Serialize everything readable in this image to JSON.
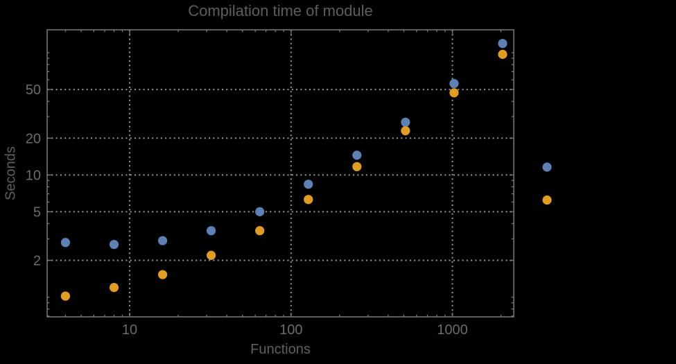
{
  "chart_data": {
    "type": "scatter",
    "title": "Compilation time of module",
    "xlabel": "Functions",
    "ylabel": "Seconds",
    "x_scale": "log",
    "y_scale": "log",
    "xlim": [
      3.08,
      2400
    ],
    "ylim": [
      0.69,
      154
    ],
    "grid_style": "dotted",
    "grid_x": [
      10,
      100,
      1000
    ],
    "grid_y": [
      2,
      5,
      10,
      20,
      50
    ],
    "x": [
      4,
      8,
      16,
      32,
      64,
      128,
      256,
      512,
      1024,
      2048
    ],
    "series": [
      {
        "id": "series-1",
        "color": "#5E81B5",
        "values": [
          2.8,
          2.7,
          2.9,
          3.5,
          5.0,
          8.4,
          14.5,
          27,
          56,
          119
        ]
      },
      {
        "id": "series-2",
        "color": "#E19C24",
        "values": [
          1.02,
          1.2,
          1.53,
          2.2,
          3.5,
          6.3,
          11.7,
          23,
          47,
          97
        ]
      }
    ],
    "x_ticks": {
      "values": [
        10,
        100,
        1000
      ],
      "labels": [
        "10",
        "100",
        "1000"
      ]
    },
    "y_ticks": {
      "values": [
        2,
        5,
        10,
        20,
        50
      ],
      "labels": [
        "2",
        "5",
        "10",
        "20",
        "50"
      ]
    },
    "legend": {
      "position": "right-outside",
      "items": [
        {
          "color": "#5E81B5",
          "label": ""
        },
        {
          "color": "#E19C24",
          "label": ""
        }
      ]
    },
    "colors": {
      "background": "#000000",
      "frame": "#7a7a7a",
      "grid": "#9b9b9b",
      "tick_text": "#6b6b6b",
      "title_text": "#5d5d5d",
      "axis_label_text": "#5f5f5f",
      "series1": "#5E81B5",
      "series2": "#E19C24"
    }
  }
}
